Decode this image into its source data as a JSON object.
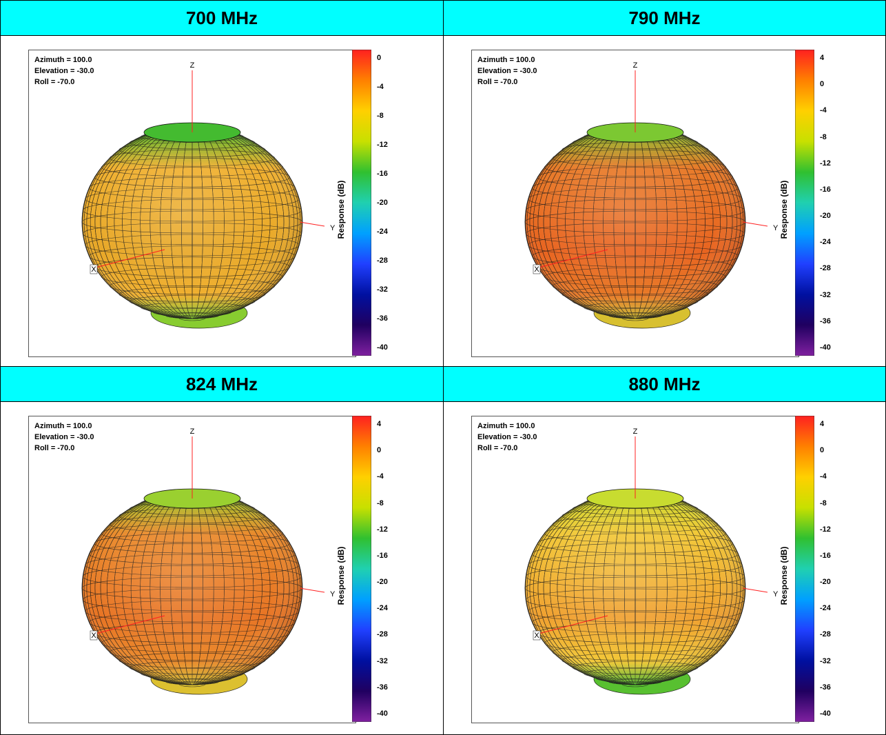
{
  "chart_data": [
    {
      "type": "3d-radiation-pattern",
      "title": "700 MHz",
      "params": [
        "Azimuth = 100.0",
        "Elevation = -30.0",
        "Roll = -70.0"
      ],
      "axes": [
        "Z",
        "Y",
        "X"
      ],
      "colorbar": {
        "label": "Response (dB)",
        "ticks": [
          "0",
          "-4",
          "-8",
          "-12",
          "-16",
          "-20",
          "-24",
          "-28",
          "-32",
          "-36",
          "-40"
        ],
        "range": [
          -40,
          0
        ]
      },
      "body_color": "#f0b030",
      "band_color": "#e8a828",
      "top_color": "#44bb30",
      "bottom_color": "#88cc30"
    },
    {
      "type": "3d-radiation-pattern",
      "title": "790 MHz",
      "params": [
        "Azimuth = 100.0",
        "Elevation = -30.0",
        "Roll = -70.0"
      ],
      "axes": [
        "Z",
        "Y",
        "X"
      ],
      "colorbar": {
        "label": "Response (dB)",
        "ticks": [
          "4",
          "0",
          "-4",
          "-8",
          "-12",
          "-16",
          "-20",
          "-24",
          "-28",
          "-32",
          "-36",
          "-40"
        ],
        "range": [
          -40,
          4
        ]
      },
      "body_color": "#e87a28",
      "band_color": "#e86420",
      "top_color": "#7cc832",
      "bottom_color": "#d8c030"
    },
    {
      "type": "3d-radiation-pattern",
      "title": "824 MHz",
      "params": [
        "Azimuth = 100.0",
        "Elevation = -30.0",
        "Roll = -70.0"
      ],
      "axes": [
        "Z",
        "Y",
        "X"
      ],
      "colorbar": {
        "label": "Response (dB)",
        "ticks": [
          "4",
          "0",
          "-4",
          "-8",
          "-12",
          "-16",
          "-20",
          "-24",
          "-28",
          "-32",
          "-36",
          "-40"
        ],
        "range": [
          -40,
          4
        ]
      },
      "body_color": "#ea8a2c",
      "band_color": "#e87424",
      "top_color": "#9ad030",
      "bottom_color": "#dcc030"
    },
    {
      "type": "3d-radiation-pattern",
      "title": "880 MHz",
      "params": [
        "Azimuth = 100.0",
        "Elevation = -30.0",
        "Roll = -70.0"
      ],
      "axes": [
        "Z",
        "Y",
        "X"
      ],
      "colorbar": {
        "label": "Response (dB)",
        "ticks": [
          "4",
          "0",
          "-4",
          "-8",
          "-12",
          "-16",
          "-20",
          "-24",
          "-28",
          "-32",
          "-36",
          "-40"
        ],
        "range": [
          -40,
          4
        ]
      },
      "body_color": "#f2c838",
      "band_color": "#f0a030",
      "top_color": "#c8dc30",
      "bottom_color": "#58c030"
    }
  ]
}
